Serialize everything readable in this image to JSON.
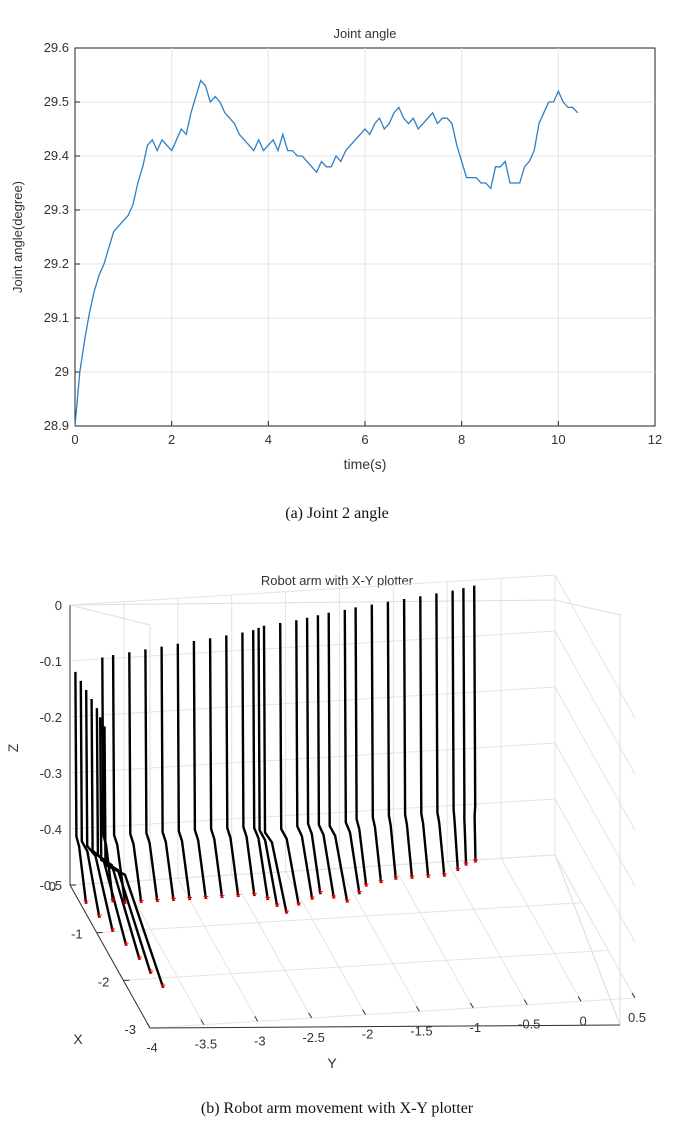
{
  "figure_a": {
    "caption": "(a)  Joint  2  angle"
  },
  "figure_b": {
    "caption": "(b)  Robot  arm  movement  with  X-Y  plotter"
  },
  "chart_data": [
    {
      "type": "line",
      "title": "Joint   angle",
      "xlabel": "time(s)",
      "ylabel": "Joint   angle(degree)",
      "xlim": [
        0,
        12
      ],
      "ylim": [
        28.9,
        29.6
      ],
      "xticks": [
        "0",
        "2",
        "4",
        "6",
        "8",
        "10",
        "12"
      ],
      "yticks": [
        "28.9",
        "29",
        "29.1",
        "29.2",
        "29.3",
        "29.4",
        "29.5",
        "29.6"
      ],
      "grid": true,
      "line_color": "#2e7fc4",
      "x": [
        0,
        0.05,
        0.1,
        0.15,
        0.2,
        0.3,
        0.4,
        0.5,
        0.6,
        0.7,
        0.8,
        0.9,
        1.0,
        1.1,
        1.2,
        1.3,
        1.4,
        1.5,
        1.6,
        1.7,
        1.8,
        1.9,
        2.0,
        2.1,
        2.2,
        2.3,
        2.4,
        2.5,
        2.6,
        2.7,
        2.8,
        2.9,
        3.0,
        3.1,
        3.2,
        3.3,
        3.4,
        3.5,
        3.6,
        3.7,
        3.8,
        3.9,
        4.0,
        4.1,
        4.2,
        4.3,
        4.4,
        4.5,
        4.6,
        4.7,
        4.8,
        4.9,
        5.0,
        5.1,
        5.2,
        5.3,
        5.4,
        5.5,
        5.6,
        5.7,
        5.8,
        5.9,
        6.0,
        6.1,
        6.2,
        6.3,
        6.4,
        6.5,
        6.6,
        6.7,
        6.8,
        6.9,
        7.0,
        7.1,
        7.2,
        7.3,
        7.4,
        7.5,
        7.6,
        7.7,
        7.8,
        7.9,
        8.0,
        8.1,
        8.2,
        8.3,
        8.4,
        8.5,
        8.6,
        8.7,
        8.8,
        8.9,
        9.0,
        9.1,
        9.2,
        9.3,
        9.4,
        9.5,
        9.6,
        9.7,
        9.8,
        9.9,
        10.0,
        10.1,
        10.2,
        10.3,
        10.4
      ],
      "y": [
        28.9,
        28.95,
        29.0,
        29.03,
        29.06,
        29.11,
        29.15,
        29.18,
        29.2,
        29.23,
        29.26,
        29.27,
        29.28,
        29.29,
        29.31,
        29.35,
        29.38,
        29.42,
        29.43,
        29.41,
        29.43,
        29.42,
        29.41,
        29.43,
        29.45,
        29.44,
        29.48,
        29.51,
        29.54,
        29.53,
        29.5,
        29.51,
        29.5,
        29.48,
        29.47,
        29.46,
        29.44,
        29.43,
        29.42,
        29.41,
        29.43,
        29.41,
        29.42,
        29.43,
        29.41,
        29.44,
        29.41,
        29.41,
        29.4,
        29.4,
        29.39,
        29.38,
        29.37,
        29.39,
        29.38,
        29.38,
        29.4,
        29.39,
        29.41,
        29.42,
        29.43,
        29.44,
        29.45,
        29.44,
        29.46,
        29.47,
        29.45,
        29.46,
        29.48,
        29.49,
        29.47,
        29.46,
        29.47,
        29.45,
        29.46,
        29.47,
        29.48,
        29.46,
        29.47,
        29.47,
        29.46,
        29.42,
        29.39,
        29.36,
        29.36,
        29.36,
        29.35,
        29.35,
        29.34,
        29.38,
        29.38,
        29.39,
        29.35,
        29.35,
        29.35,
        29.38,
        29.39,
        29.41,
        29.46,
        29.48,
        29.5,
        29.5,
        29.52,
        29.5,
        29.49,
        29.49,
        29.48
      ]
    },
    {
      "type": "scatter",
      "title": "Robot arm with X-Y plotter",
      "xlabel": "X",
      "ylabel": "Y",
      "zlabel": "Z",
      "xlim": [
        -3,
        0
      ],
      "ylim": [
        -4,
        0.5
      ],
      "zlim": [
        -0.5,
        0
      ],
      "xticks": [
        "0",
        "-1",
        "-2",
        "-3"
      ],
      "yticks": [
        "-4",
        "-3.5",
        "-3",
        "-2.5",
        "-2",
        "-1.5",
        "-1",
        "-0.5",
        "0",
        "0.5"
      ],
      "zticks": [
        "0",
        "-0.1",
        "-0.2",
        "-0.3",
        "-0.4",
        "-0.5"
      ],
      "grid": true,
      "line_color": "#000000",
      "marker_color": "#ff0000",
      "marker": "*",
      "endpoints_xy": [
        [
          -0.4,
          -3.95
        ],
        [
          -0.7,
          -3.9
        ],
        [
          -1.0,
          -3.85
        ],
        [
          -1.3,
          -3.8
        ],
        [
          -1.6,
          -3.75
        ],
        [
          -1.9,
          -3.72
        ],
        [
          -2.2,
          -3.68
        ],
        [
          -0.4,
          -3.7
        ],
        [
          -0.45,
          -3.6
        ],
        [
          -0.45,
          -3.45
        ],
        [
          -0.45,
          -3.3
        ],
        [
          -0.45,
          -3.15
        ],
        [
          -0.45,
          -3.0
        ],
        [
          -0.45,
          -2.85
        ],
        [
          -0.45,
          -2.7
        ],
        [
          -0.45,
          -2.55
        ],
        [
          -0.45,
          -2.4
        ],
        [
          -0.55,
          -2.3
        ],
        [
          -0.7,
          -2.25
        ],
        [
          -0.85,
          -2.2
        ],
        [
          -0.7,
          -2.05
        ],
        [
          -0.6,
          -1.9
        ],
        [
          -0.5,
          -1.8
        ],
        [
          -0.6,
          -1.7
        ],
        [
          -0.7,
          -1.6
        ],
        [
          -0.55,
          -1.45
        ],
        [
          -0.4,
          -1.35
        ],
        [
          -0.35,
          -1.2
        ],
        [
          -0.3,
          -1.05
        ],
        [
          -0.3,
          -0.9
        ],
        [
          -0.3,
          -0.75
        ],
        [
          -0.3,
          -0.6
        ],
        [
          -0.2,
          -0.45
        ],
        [
          -0.1,
          -0.35
        ],
        [
          -0.05,
          -0.25
        ]
      ]
    }
  ]
}
